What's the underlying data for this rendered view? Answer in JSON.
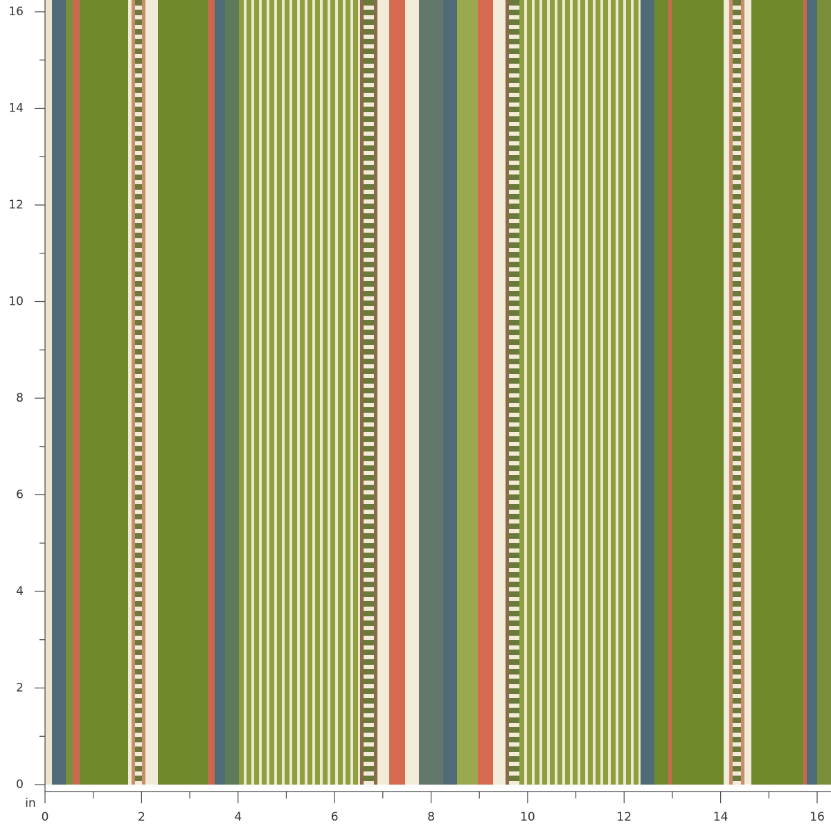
{
  "ruler": {
    "unit": "in",
    "x_range": [
      0,
      16
    ],
    "y_range": [
      0,
      16
    ],
    "x_ticks": [
      0,
      2,
      4,
      6,
      8,
      10,
      12,
      14,
      16
    ],
    "y_ticks": [
      0,
      2,
      4,
      6,
      8,
      10,
      12,
      14,
      16
    ],
    "x_minor_ticks": [
      1,
      3,
      5,
      7,
      9,
      11,
      13,
      15
    ],
    "y_minor_ticks": [
      1,
      3,
      5,
      7,
      9,
      11,
      13,
      15
    ]
  }
}
